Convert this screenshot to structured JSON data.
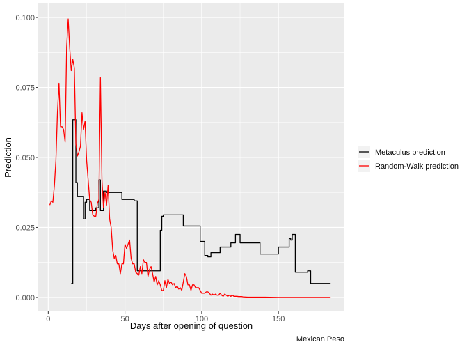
{
  "chart_data": {
    "type": "line",
    "xlabel": "Days after opening of question",
    "ylabel": "Prediction",
    "caption": "Mexican Peso",
    "xlim": [
      -6.5,
      193
    ],
    "ylim": [
      -0.005,
      0.105
    ],
    "x_ticks": [
      0,
      50,
      100,
      150
    ],
    "x_tick_labels": [
      "0",
      "50",
      "100",
      "150"
    ],
    "y_ticks": [
      0.0,
      0.025,
      0.05,
      0.075,
      0.1
    ],
    "y_tick_labels": [
      "0.000",
      "0.025",
      "0.050",
      "0.075",
      "0.100"
    ],
    "grid": true,
    "legend_position": "right",
    "series": [
      {
        "name": "Metaculus prediction",
        "color": "#000000",
        "step": true,
        "x": [
          15,
          16,
          17,
          18,
          19,
          21,
          23,
          24,
          25,
          26,
          27,
          29,
          31,
          33,
          34,
          35,
          36,
          38,
          41,
          43,
          48,
          51,
          56,
          58,
          60,
          61,
          64,
          68,
          71,
          73,
          74,
          75,
          80,
          84,
          88,
          93,
          99,
          101,
          102,
          104,
          106,
          112,
          115,
          117,
          119,
          122,
          125,
          134,
          138,
          141,
          147,
          150,
          153,
          157,
          158,
          159,
          161,
          169,
          170,
          171,
          184
        ],
        "y": [
          0.005,
          0.0635,
          0.0635,
          0.041,
          0.036,
          0.036,
          0.028,
          0.034,
          0.035,
          0.035,
          0.031,
          0.031,
          0.032,
          0.042,
          0.031,
          0.031,
          0.038,
          0.0375,
          0.0375,
          0.0375,
          0.035,
          0.035,
          0.0345,
          0.0095,
          0.0095,
          0.0095,
          0.0095,
          0.0095,
          0.0095,
          0.024,
          0.029,
          0.0295,
          0.0295,
          0.0295,
          0.0255,
          0.0255,
          0.02,
          0.02,
          0.015,
          0.0145,
          0.016,
          0.018,
          0.018,
          0.018,
          0.0195,
          0.0225,
          0.0195,
          0.0195,
          0.0155,
          0.0155,
          0.0155,
          0.018,
          0.018,
          0.021,
          0.0205,
          0.0225,
          0.009,
          0.0095,
          0.0095,
          0.005,
          0.005
        ]
      },
      {
        "name": "Random-Walk prediction",
        "color": "#ff0000",
        "step": false,
        "x": [
          1,
          2,
          3,
          4,
          5,
          6,
          7,
          8,
          9,
          10,
          11,
          12,
          13,
          14,
          15,
          16,
          17,
          18,
          19,
          20,
          21,
          22,
          23,
          24,
          25,
          26,
          27,
          28,
          29,
          30,
          31,
          32,
          33,
          34,
          35,
          36,
          37,
          38,
          39,
          40,
          41,
          42,
          43,
          44,
          45,
          46,
          47,
          48,
          49,
          50,
          51,
          52,
          53,
          54,
          55,
          56,
          57,
          58,
          59,
          60,
          61,
          62,
          63,
          64,
          65,
          66,
          67,
          68,
          69,
          70,
          71,
          72,
          73,
          74,
          75,
          76,
          77,
          78,
          79,
          80,
          81,
          82,
          83,
          84,
          85,
          86,
          87,
          88,
          89,
          90,
          91,
          92,
          93,
          94,
          95,
          96,
          97,
          98,
          99,
          100,
          101,
          102,
          103,
          104,
          105,
          106,
          107,
          108,
          109,
          110,
          111,
          112,
          113,
          114,
          115,
          116,
          117,
          118,
          119,
          120,
          121,
          122,
          123,
          124,
          125,
          126,
          127,
          130,
          140,
          150,
          160,
          170,
          180,
          184
        ],
        "y": [
          0.033,
          0.0345,
          0.034,
          0.04,
          0.049,
          0.066,
          0.0765,
          0.061,
          0.061,
          0.06,
          0.0555,
          0.0895,
          0.0995,
          0.089,
          0.081,
          0.085,
          0.082,
          0.055,
          0.0505,
          0.052,
          0.054,
          0.066,
          0.06,
          0.063,
          0.049,
          0.042,
          0.035,
          0.034,
          0.0295,
          0.029,
          0.029,
          0.0335,
          0.035,
          0.0785,
          0.042,
          0.032,
          0.0375,
          0.033,
          0.04,
          0.028,
          0.025,
          0.017,
          0.014,
          0.015,
          0.012,
          0.012,
          0.0085,
          0.012,
          0.012,
          0.019,
          0.0175,
          0.019,
          0.0205,
          0.014,
          0.012,
          0.012,
          0.009,
          0.0085,
          0.008,
          0.011,
          0.0085,
          0.0135,
          0.0125,
          0.0125,
          0.0075,
          0.01,
          0.011,
          0.0085,
          0.0055,
          0.0075,
          0.0045,
          0.006,
          0.0045,
          0.0025,
          0.0025,
          0.006,
          0.0035,
          0.0065,
          0.005,
          0.0055,
          0.0045,
          0.005,
          0.0035,
          0.004,
          0.003,
          0.0035,
          0.0025,
          0.0055,
          0.0085,
          0.0075,
          0.0045,
          0.0045,
          0.0025,
          0.0045,
          0.0045,
          0.0035,
          0.0035,
          0.0035,
          0.0025,
          0.0015,
          0.0015,
          0.0015,
          0.002,
          0.002,
          0.0015,
          0.0008,
          0.0012,
          0.0008,
          0.0012,
          0.0008,
          0.0008,
          0.0015,
          0.0008,
          0.0004,
          0.0012,
          0.0008,
          0.0004,
          0.0008,
          0.0004,
          0.0008,
          0.0004,
          0.0004,
          0.0004,
          0.0003,
          0.0003,
          0.0003,
          0.0002,
          0.0001,
          0.0001,
          0.0,
          0.0,
          0.0,
          0.0,
          0.0
        ]
      }
    ]
  }
}
